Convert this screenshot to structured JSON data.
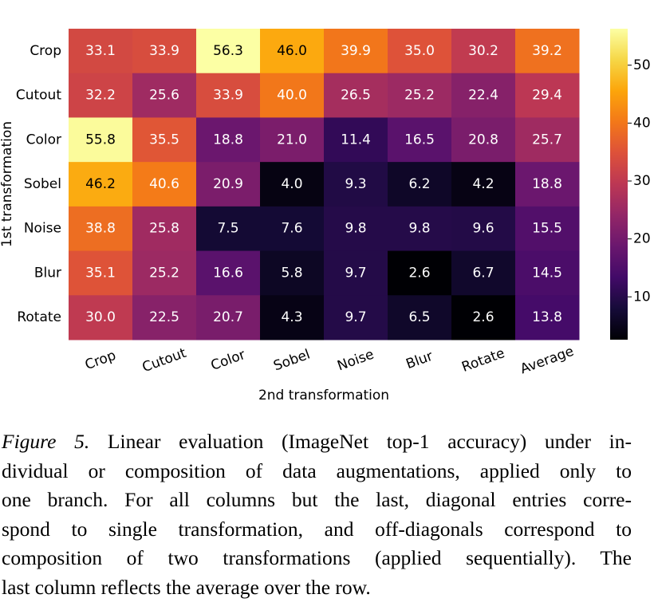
{
  "chart_data": {
    "type": "heatmap",
    "x_label": "2nd transformation",
    "y_label": "1st transformation",
    "columns": [
      "Crop",
      "Cutout",
      "Color",
      "Sobel",
      "Noise",
      "Blur",
      "Rotate",
      "Average"
    ],
    "rows": [
      "Crop",
      "Cutout",
      "Color",
      "Sobel",
      "Noise",
      "Blur",
      "Rotate"
    ],
    "values": [
      [
        33.1,
        33.9,
        56.3,
        46.0,
        39.9,
        35.0,
        30.2,
        39.2
      ],
      [
        32.2,
        25.6,
        33.9,
        40.0,
        26.5,
        25.2,
        22.4,
        29.4
      ],
      [
        55.8,
        35.5,
        18.8,
        21.0,
        11.4,
        16.5,
        20.8,
        25.7
      ],
      [
        46.2,
        40.6,
        20.9,
        4.0,
        9.3,
        6.2,
        4.2,
        18.8
      ],
      [
        38.8,
        25.8,
        7.5,
        7.6,
        9.8,
        9.8,
        9.6,
        15.5
      ],
      [
        35.1,
        25.2,
        16.6,
        5.8,
        9.7,
        2.6,
        6.7,
        14.5
      ],
      [
        30.0,
        22.5,
        20.7,
        4.3,
        9.7,
        6.5,
        2.6,
        13.8
      ]
    ],
    "value_labels": [
      [
        "33.1",
        "33.9",
        "56.3",
        "46.0",
        "39.9",
        "35.0",
        "30.2",
        "39.2"
      ],
      [
        "32.2",
        "25.6",
        "33.9",
        "40.0",
        "26.5",
        "25.2",
        "22.4",
        "29.4"
      ],
      [
        "55.8",
        "35.5",
        "18.8",
        "21.0",
        "11.4",
        "16.5",
        "20.8",
        "25.7"
      ],
      [
        "46.2",
        "40.6",
        "20.9",
        "4.0",
        "9.3",
        "6.2",
        "4.2",
        "18.8"
      ],
      [
        "38.8",
        "25.8",
        "7.5",
        "7.6",
        "9.8",
        "9.8",
        "9.6",
        "15.5"
      ],
      [
        "35.1",
        "25.2",
        "16.6",
        "5.8",
        "9.7",
        "2.6",
        "6.7",
        "14.5"
      ],
      [
        "30.0",
        "22.5",
        "20.7",
        "4.3",
        "9.7",
        "6.5",
        "2.6",
        "13.8"
      ]
    ],
    "colormap": "inferno",
    "clim": [
      2.6,
      56.3
    ],
    "cticks": [
      10,
      20,
      30,
      40,
      50
    ]
  },
  "caption": {
    "label": "Figure 5.",
    "lines": [
      "Linear evaluation (ImageNet top-1 accuracy) under in-",
      "dividual or composition of data augmentations, applied only to",
      "one branch.  For all columns but the last, diagonal entries corre-",
      "spond to single transformation, and off-diagonals correspond to",
      "composition of two transformations (applied sequentially).  The",
      "last column reflects the average over the row."
    ]
  }
}
